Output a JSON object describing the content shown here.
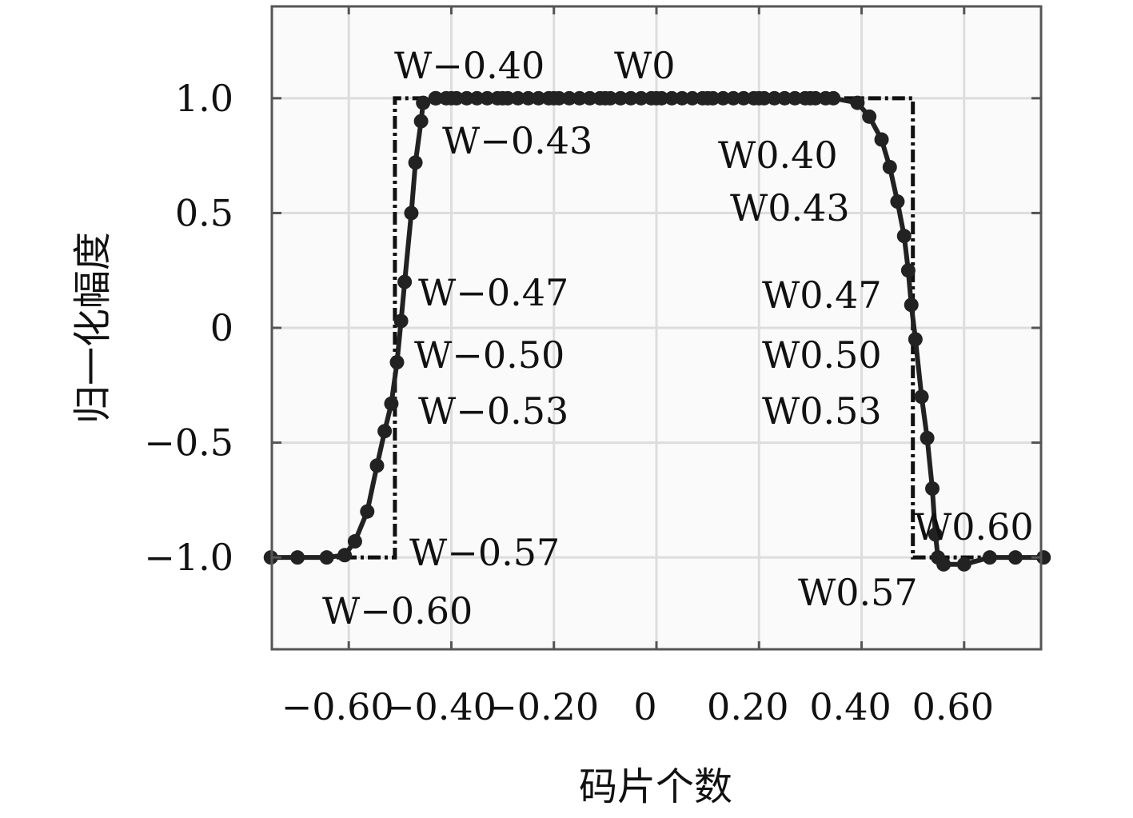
{
  "chart_data": {
    "type": "line",
    "title": "",
    "xlabel": "码片个数",
    "ylabel": "归一化幅度",
    "xlim": [
      -0.75,
      0.75
    ],
    "ylim": [
      -1.4,
      1.4
    ],
    "grid": true,
    "x_ticks": [
      -0.6,
      -0.4,
      -0.2,
      0,
      0.2,
      0.4,
      0.6
    ],
    "x_tick_labels": [
      "−0.60",
      "−0.40",
      "−0.20",
      "0",
      "0.20",
      "0.40",
      "0.60"
    ],
    "y_ticks": [
      1.0,
      0.5,
      0,
      -0.5,
      -1.0
    ],
    "y_tick_labels": [
      "1.0",
      "0.5",
      "0",
      "−0.5",
      "−1.0"
    ],
    "series": [
      {
        "style": "dash-dot",
        "color": "#111111",
        "x": [
          -0.75,
          -0.51,
          -0.51,
          0.5,
          0.5,
          0.75
        ],
        "y": [
          -1.0,
          -1.0,
          1.0,
          1.0,
          -1.0,
          -1.0
        ]
      },
      {
        "style": "solid-with-circle-markers",
        "color": "#222222",
        "x": [
          -0.752,
          -0.7,
          -0.643,
          -0.608,
          -0.588,
          -0.564,
          -0.545,
          -0.53,
          -0.517,
          -0.506,
          -0.498,
          -0.491,
          -0.478,
          -0.47,
          -0.459,
          -0.455,
          -0.431,
          -0.4,
          -0.3,
          -0.2,
          -0.1,
          0,
          0.1,
          0.2,
          0.3,
          0.345,
          0.392,
          0.415,
          0.439,
          0.455,
          0.47,
          0.483,
          0.491,
          0.497,
          0.505,
          0.517,
          0.528,
          0.538,
          0.544,
          0.549,
          0.56,
          0.6,
          0.65,
          0.7,
          0.755
        ],
        "y": [
          -1.0,
          -1.0,
          -1.0,
          -0.99,
          -0.93,
          -0.8,
          -0.6,
          -0.45,
          -0.33,
          -0.15,
          0.03,
          0.2,
          0.5,
          0.72,
          0.9,
          0.98,
          1.0,
          1.0,
          1.0,
          1.0,
          1.0,
          1.0,
          1.0,
          1.0,
          1.0,
          1.0,
          0.98,
          0.92,
          0.82,
          0.7,
          0.55,
          0.4,
          0.25,
          0.1,
          -0.05,
          -0.3,
          -0.48,
          -0.7,
          -0.9,
          -1.0,
          -1.03,
          -1.03,
          -1.0,
          -1.0,
          -1.0
        ]
      }
    ],
    "annotations": [
      "W−0.40",
      "W0",
      "W−0.43",
      "W0.40",
      "W0.43",
      "W−0.47",
      "W0.47",
      "W−0.50",
      "W0.50",
      "W−0.53",
      "W0.53",
      "W0.60",
      "W−0.57",
      "W0.57",
      "W−0.60"
    ]
  }
}
